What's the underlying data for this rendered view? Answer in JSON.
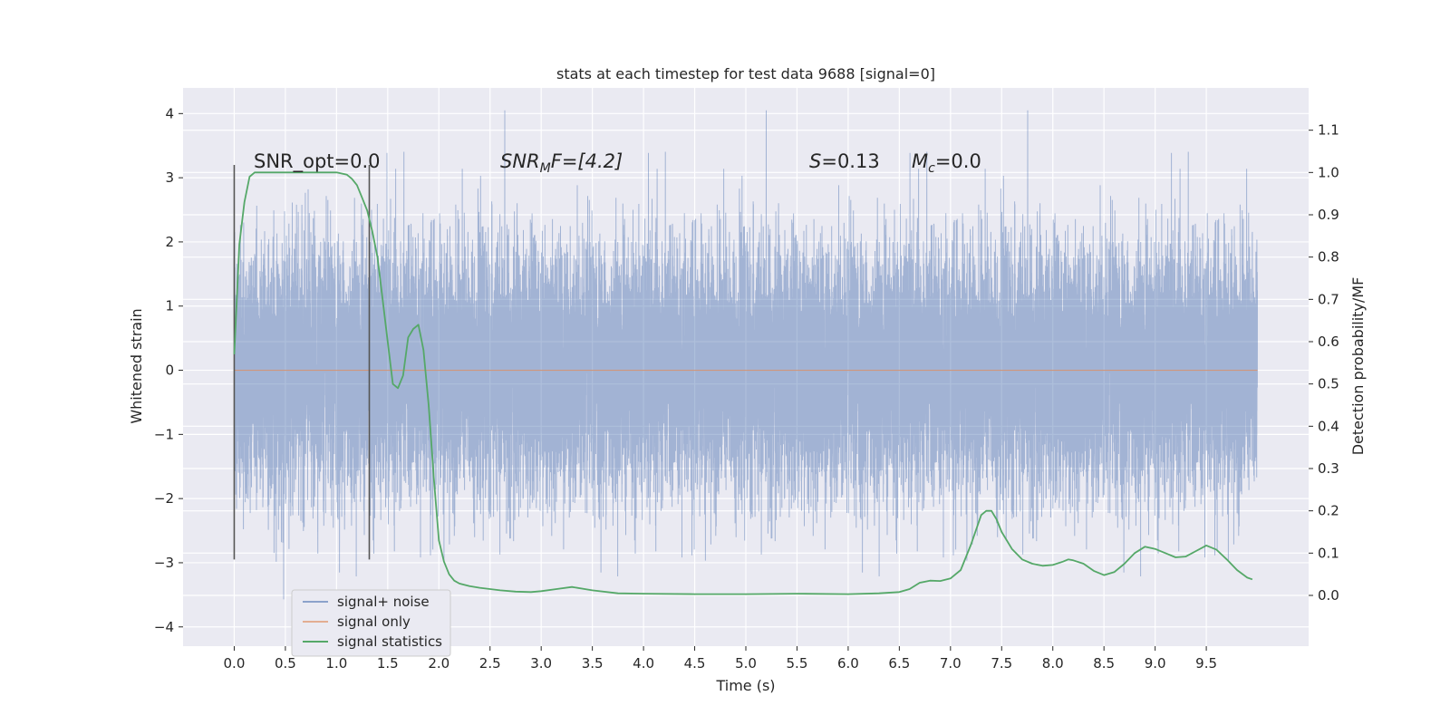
{
  "chart_data": {
    "type": "line",
    "title": "stats at each timestep for test data 9688 [signal=0]",
    "xlabel": "Time (s)",
    "ylabel": "Whitened strain",
    "y2label": "Detection probability/MF",
    "xlim": [
      -0.5,
      10.5
    ],
    "ylim": [
      -4.3,
      4.4
    ],
    "y2lim": [
      -0.12,
      1.2
    ],
    "xticks": [
      0.0,
      0.5,
      1.0,
      1.5,
      2.0,
      2.5,
      3.0,
      3.5,
      4.0,
      4.5,
      5.0,
      5.5,
      6.0,
      6.5,
      7.0,
      7.5,
      8.0,
      8.5,
      9.0,
      9.5
    ],
    "xtick_labels": [
      "0.0",
      "0.5",
      "1.0",
      "1.5",
      "2.0",
      "2.5",
      "3.0",
      "3.5",
      "4.0",
      "4.5",
      "5.0",
      "5.5",
      "6.0",
      "6.5",
      "7.0",
      "7.5",
      "8.0",
      "8.5",
      "9.0",
      "9.5"
    ],
    "yticks": [
      4,
      3,
      2,
      1,
      0,
      -1,
      -2,
      -3,
      -4
    ],
    "ytick_labels": [
      "4",
      "3",
      "2",
      "1",
      "0",
      "−1",
      "−2",
      "−3",
      "−4"
    ],
    "y2ticks": [
      1.1,
      1.0,
      0.9,
      0.8,
      0.7,
      0.6,
      0.5,
      0.4,
      0.3,
      0.2,
      0.1,
      0.0
    ],
    "y2tick_labels": [
      "1.1",
      "1.0",
      "0.9",
      "0.8",
      "0.7",
      "0.6",
      "0.5",
      "0.4",
      "0.3",
      "0.2",
      "0.1",
      "0.0"
    ],
    "grid": true,
    "legend_position": "lower-left",
    "series": [
      {
        "name": "signal+ noise",
        "color": "#4c72b0",
        "axis": "left",
        "t_start": 0.0,
        "t_end": 10.0,
        "sample_rate_hz": 2048,
        "seed": 9688,
        "approx_std": 0.95,
        "approx_range": [
          -3.8,
          4.05
        ]
      },
      {
        "name": "signal only",
        "color": "#dd8452",
        "axis": "left",
        "x": [
          0.0,
          10.0
        ],
        "y": [
          0.0,
          0.0
        ]
      },
      {
        "name": "signal statistics",
        "color": "#55a868",
        "axis": "right",
        "x": [
          0.0,
          0.05,
          0.1,
          0.15,
          0.2,
          0.3,
          0.5,
          0.8,
          1.0,
          1.1,
          1.15,
          1.2,
          1.25,
          1.3,
          1.35,
          1.4,
          1.45,
          1.5,
          1.55,
          1.6,
          1.65,
          1.7,
          1.75,
          1.8,
          1.85,
          1.9,
          1.95,
          2.0,
          2.05,
          2.1,
          2.15,
          2.2,
          2.3,
          2.4,
          2.5,
          2.6,
          2.75,
          2.9,
          3.0,
          3.15,
          3.3,
          3.5,
          3.75,
          4.0,
          4.5,
          5.0,
          5.5,
          6.0,
          6.3,
          6.5,
          6.6,
          6.7,
          6.8,
          6.9,
          7.0,
          7.1,
          7.2,
          7.3,
          7.35,
          7.4,
          7.45,
          7.5,
          7.6,
          7.7,
          7.8,
          7.9,
          8.0,
          8.1,
          8.15,
          8.2,
          8.3,
          8.4,
          8.5,
          8.6,
          8.7,
          8.8,
          8.9,
          9.0,
          9.1,
          9.2,
          9.3,
          9.4,
          9.5,
          9.6,
          9.7,
          9.8,
          9.9,
          9.95
        ],
        "y": [
          0.57,
          0.83,
          0.93,
          0.99,
          1.0,
          1.0,
          1.0,
          1.0,
          1.0,
          0.995,
          0.985,
          0.97,
          0.94,
          0.91,
          0.86,
          0.8,
          0.7,
          0.6,
          0.5,
          0.49,
          0.52,
          0.61,
          0.63,
          0.64,
          0.58,
          0.45,
          0.28,
          0.13,
          0.08,
          0.05,
          0.035,
          0.028,
          0.022,
          0.018,
          0.015,
          0.012,
          0.009,
          0.008,
          0.01,
          0.015,
          0.02,
          0.012,
          0.005,
          0.004,
          0.003,
          0.003,
          0.004,
          0.003,
          0.005,
          0.008,
          0.015,
          0.03,
          0.035,
          0.034,
          0.04,
          0.06,
          0.12,
          0.19,
          0.2,
          0.2,
          0.18,
          0.15,
          0.11,
          0.085,
          0.075,
          0.07,
          0.072,
          0.08,
          0.085,
          0.083,
          0.075,
          0.058,
          0.048,
          0.055,
          0.075,
          0.1,
          0.115,
          0.11,
          0.1,
          0.09,
          0.092,
          0.105,
          0.118,
          0.108,
          0.085,
          0.06,
          0.042,
          0.038
        ]
      }
    ],
    "vertical_markers": [
      {
        "x": 0.0,
        "y_range": [
          -2.95,
          3.2
        ],
        "color": "#555555"
      },
      {
        "x": 1.32,
        "y_range": [
          -2.95,
          3.2
        ],
        "color": "#555555"
      }
    ],
    "annotations": [
      {
        "key": "snr_opt",
        "text": "SNR_opt=0.0",
        "x": 0.2,
        "y": 3.3
      },
      {
        "key": "snr_mf",
        "text": "SNR_MF=[4.2]",
        "x": 2.6,
        "y": 3.3
      },
      {
        "key": "s",
        "text": "S=0.13",
        "x": 5.6,
        "y": 3.3
      },
      {
        "key": "mc",
        "text": "M_c=0.0",
        "x": 6.6,
        "y": 3.3
      }
    ]
  },
  "annotations_text": {
    "snr_opt": "SNR_opt=0.0",
    "snr_mf_prefix": "SNR",
    "snr_mf_sub": "M",
    "snr_mf_rest": "F=[4.2]",
    "s_italic": "S",
    "s_value": "=0.13",
    "mc_italic": "M",
    "mc_sub": "c",
    "mc_value": "=0.0"
  },
  "legend": {
    "items": [
      {
        "label": "signal+ noise",
        "color": "#4c72b0"
      },
      {
        "label": "signal only",
        "color": "#dd8452"
      },
      {
        "label": "signal statistics",
        "color": "#55a868"
      }
    ]
  },
  "style": {
    "axes_bg": "#eaeaf2",
    "grid_color": "#ffffff",
    "text_color": "#262626"
  }
}
